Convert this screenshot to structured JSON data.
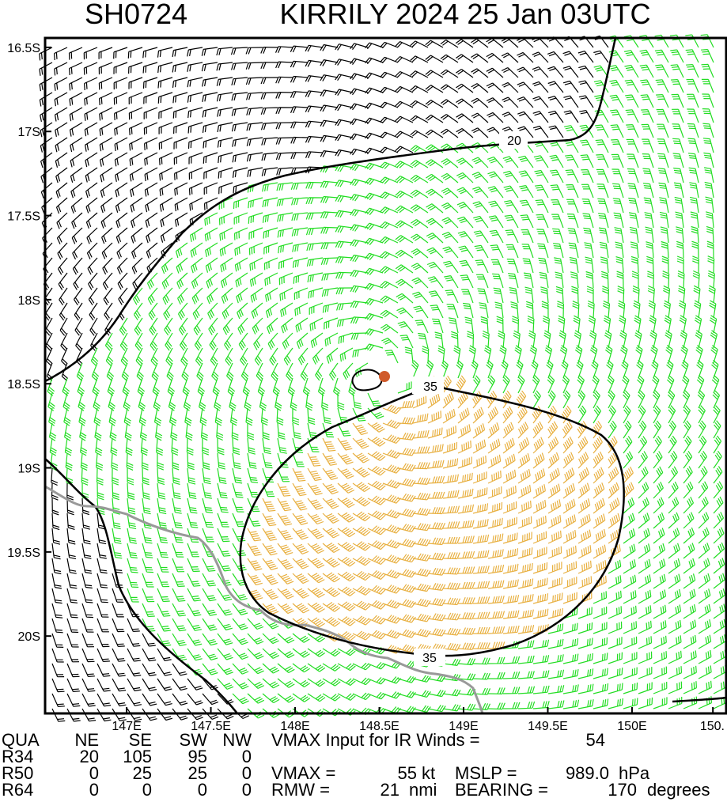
{
  "map": {
    "title_id": "SH0724",
    "title": "KIRRILY 2024 25 Jan 03UTC",
    "xlim": [
      146.516,
      150.559
    ],
    "ylim": [
      -16.444,
      -20.46
    ],
    "xticks": [
      {
        "value": 147,
        "label": "147E"
      },
      {
        "value": 147.5,
        "label": "147.5E"
      },
      {
        "value": 148,
        "label": "148E"
      },
      {
        "value": 148.5,
        "label": "148.5E"
      },
      {
        "value": 149,
        "label": "149E"
      },
      {
        "value": 149.5,
        "label": "149.5E"
      },
      {
        "value": 150,
        "label": "150E"
      },
      {
        "value": 150.48,
        "label": "150."
      }
    ],
    "yticks": [
      {
        "value": -16.5,
        "label": "16.5S"
      },
      {
        "value": -17,
        "label": "17S"
      },
      {
        "value": -17.5,
        "label": "17.5S"
      },
      {
        "value": -18,
        "label": "18S"
      },
      {
        "value": -18.5,
        "label": "18.5S"
      },
      {
        "value": -19,
        "label": "19S"
      },
      {
        "value": -19.5,
        "label": "19.5S"
      },
      {
        "value": -20,
        "label": "20S"
      }
    ],
    "contour_labels": [
      "20",
      "35",
      "35"
    ]
  },
  "table": {
    "header": [
      "QUA",
      "NE",
      "SE",
      "SW",
      "NW"
    ],
    "rows": [
      [
        "R34",
        20,
        105,
        95,
        0
      ],
      [
        "R50",
        0,
        25,
        25,
        0
      ],
      [
        "R64",
        0,
        0,
        0,
        0
      ]
    ]
  },
  "info_lines": [
    [
      "VMAX Input for IR Winds =",
      54
    ],
    [
      "VMAX =",
      55,
      "kt",
      "MSLP =",
      "989.0",
      "hPa"
    ],
    [
      "RMW =",
      21,
      "nmi",
      "BEARING =",
      170,
      "degrees"
    ]
  ]
}
